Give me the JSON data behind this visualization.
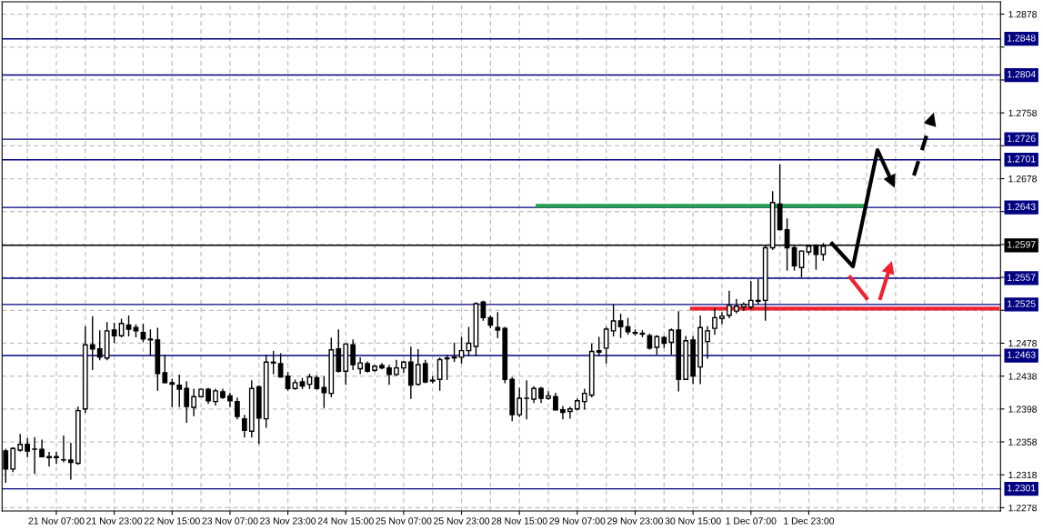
{
  "chart_data": {
    "type": "candlestick",
    "categories": [
      null,
      null,
      null,
      null,
      null,
      null,
      null,
      "21 Nov 07:00",
      null,
      null,
      null,
      null,
      null,
      null,
      null,
      "21 Nov 23:00",
      null,
      null,
      null,
      null,
      null,
      null,
      null,
      "22 Nov 15:00",
      null,
      null,
      null,
      null,
      null,
      null,
      null,
      "23 Nov 07:00",
      null,
      null,
      null,
      null,
      null,
      null,
      null,
      "23 Nov 23:00",
      null,
      null,
      null,
      null,
      null,
      null,
      null,
      "24 Nov 15:00",
      null,
      null,
      null,
      null,
      null,
      null,
      null,
      "25 Nov 07:00",
      null,
      null,
      null,
      null,
      null,
      null,
      null,
      "25 Nov 23:00",
      null,
      null,
      null,
      null,
      null,
      null,
      null,
      "28 Nov 15:00",
      null,
      null,
      null,
      null,
      null,
      null,
      null,
      "29 Nov 07:00",
      null,
      null,
      null,
      null,
      null,
      null,
      null,
      "29 Nov 23:00",
      null,
      null,
      null,
      null,
      null,
      null,
      null,
      "30 Nov 15:00",
      null,
      null,
      null,
      null,
      null,
      null,
      null,
      "1 Dec 07:00",
      null,
      null,
      null,
      null,
      null,
      null,
      null,
      "1 Dec 23:00",
      null,
      null,
      null,
      null,
      null,
      null,
      null,
      null,
      null,
      null,
      null,
      null,
      null,
      null,
      null,
      null,
      null,
      null,
      null,
      null,
      null,
      null,
      null,
      null,
      null,
      null
    ],
    "ylim": [
      1.2274,
      1.2893
    ],
    "yticks": [
      {
        "value": 1.2278,
        "label": "1.2278"
      },
      {
        "value": 1.2318,
        "label": "1.2318"
      },
      {
        "value": 1.2358,
        "label": "1.2358"
      },
      {
        "value": 1.2398,
        "label": "1.2398"
      },
      {
        "value": 1.2438,
        "label": "1.2438"
      },
      {
        "value": 1.2478,
        "label": "1.2478"
      },
      {
        "value": 1.2518,
        "label": null
      },
      {
        "value": 1.2558,
        "label": null
      },
      {
        "value": 1.2598,
        "label": null
      },
      {
        "value": 1.2638,
        "label": null
      },
      {
        "value": 1.2678,
        "label": "1.2678"
      },
      {
        "value": 1.2718,
        "label": null
      },
      {
        "value": 1.2758,
        "label": "1.2758"
      },
      {
        "value": 1.2798,
        "label": null
      },
      {
        "value": 1.2838,
        "label": null
      },
      {
        "value": 1.2878,
        "label": "1.2878"
      }
    ],
    "grid": true,
    "ref_lines": [
      {
        "axis": "y",
        "value": 1.2848,
        "label": "1.2848",
        "color": "#000080"
      },
      {
        "axis": "y",
        "value": 1.2804,
        "label": "1.2804",
        "color": "#000080"
      },
      {
        "axis": "y",
        "value": 1.2726,
        "label": "1.2726",
        "color": "#000080"
      },
      {
        "axis": "y",
        "value": 1.2701,
        "label": "1.2701",
        "color": "#000080"
      },
      {
        "axis": "y",
        "value": 1.2643,
        "label": "1.2643",
        "color": "#000080"
      },
      {
        "axis": "y",
        "value": 1.2597,
        "label": "1.2597",
        "color": "#000000"
      },
      {
        "axis": "y",
        "value": 1.2557,
        "label": "1.2557",
        "color": "#000080"
      },
      {
        "axis": "y",
        "value": 1.2525,
        "label": "1.2525",
        "color": "#000080"
      },
      {
        "axis": "y",
        "value": 1.2463,
        "label": "1.2463",
        "color": "#000080"
      },
      {
        "axis": "y",
        "value": 1.2301,
        "label": "1.2301",
        "color": "#000080"
      },
      {
        "axis": "y",
        "value": 1.2645,
        "color": "#22a04b"
      },
      {
        "axis": "y",
        "value": 1.252,
        "color": "#ee2233"
      }
    ],
    "ohlc": [
      [
        1.2347,
        1.2349,
        1.2309,
        1.2325
      ],
      [
        1.2325,
        1.2351,
        1.2322,
        1.235
      ],
      [
        1.2348,
        1.2367,
        1.2347,
        1.2355
      ],
      [
        1.2355,
        1.2362,
        1.234,
        1.2347
      ],
      [
        1.2349,
        1.2363,
        1.232,
        1.2349
      ],
      [
        1.2349,
        1.236,
        1.234,
        1.234
      ],
      [
        1.234,
        1.2345,
        1.2329,
        1.2339
      ],
      [
        1.2339,
        1.2345,
        1.2332,
        1.234
      ],
      [
        1.2336,
        1.2365,
        1.2334,
        1.2336
      ],
      [
        1.2336,
        1.2356,
        1.2313,
        1.2333
      ],
      [
        1.2332,
        1.24,
        1.2331,
        1.2396
      ],
      [
        1.2398,
        1.2498,
        1.2394,
        1.2476
      ],
      [
        1.2476,
        1.251,
        1.2446,
        1.2471
      ],
      [
        1.2471,
        1.2493,
        1.2458,
        1.2461
      ],
      [
        1.246,
        1.2503,
        1.2458,
        1.2493
      ],
      [
        1.2494,
        1.2502,
        1.2479,
        1.2487
      ],
      [
        1.2487,
        1.2507,
        1.2486,
        1.2502
      ],
      [
        1.25,
        1.2511,
        1.2487,
        1.2495
      ],
      [
        1.2497,
        1.25,
        1.2486,
        1.2493
      ],
      [
        1.2491,
        1.2501,
        1.248,
        1.2483
      ],
      [
        1.2483,
        1.2494,
        1.2464,
        1.2482
      ],
      [
        1.2482,
        1.2496,
        1.2421,
        1.2441
      ],
      [
        1.2442,
        1.2463,
        1.243,
        1.243
      ],
      [
        1.243,
        1.2434,
        1.2401,
        1.2428
      ],
      [
        1.2427,
        1.2439,
        1.2401,
        1.2422
      ],
      [
        1.2423,
        1.2431,
        1.2382,
        1.2401
      ],
      [
        1.24,
        1.2422,
        1.239,
        1.2413
      ],
      [
        1.2413,
        1.2422,
        1.2413,
        1.2422
      ],
      [
        1.2422,
        1.2423,
        1.2405,
        1.2408
      ],
      [
        1.2407,
        1.2422,
        1.2403,
        1.242
      ],
      [
        1.2419,
        1.2422,
        1.2411,
        1.2412
      ],
      [
        1.2414,
        1.2417,
        1.2401,
        1.2408
      ],
      [
        1.2407,
        1.2411,
        1.2386,
        1.2389
      ],
      [
        1.2386,
        1.239,
        1.2364,
        1.2372
      ],
      [
        1.2371,
        1.2432,
        1.2364,
        1.2423
      ],
      [
        1.2425,
        1.2426,
        1.2356,
        1.2387
      ],
      [
        1.2386,
        1.2463,
        1.2376,
        1.2455
      ],
      [
        1.2455,
        1.2468,
        1.2441,
        1.2454
      ],
      [
        1.2453,
        1.2465,
        1.2437,
        1.2437
      ],
      [
        1.2438,
        1.2442,
        1.2421,
        1.2423
      ],
      [
        1.2423,
        1.2433,
        1.2422,
        1.243
      ],
      [
        1.2431,
        1.2435,
        1.2423,
        1.2426
      ],
      [
        1.2428,
        1.244,
        1.2423,
        1.2437
      ],
      [
        1.2436,
        1.2438,
        1.2422,
        1.2423
      ],
      [
        1.2424,
        1.2437,
        1.24,
        1.2418
      ],
      [
        1.2417,
        1.2484,
        1.2413,
        1.247
      ],
      [
        1.2471,
        1.2494,
        1.2443,
        1.2444
      ],
      [
        1.2444,
        1.2477,
        1.2428,
        1.2477
      ],
      [
        1.2476,
        1.2482,
        1.2446,
        1.2452
      ],
      [
        1.2447,
        1.246,
        1.2441,
        1.2454
      ],
      [
        1.2453,
        1.2455,
        1.2443,
        1.2444
      ],
      [
        1.2445,
        1.2451,
        1.2444,
        1.245
      ],
      [
        1.2451,
        1.2453,
        1.2447,
        1.2448
      ],
      [
        1.2448,
        1.2451,
        1.2428,
        1.244
      ],
      [
        1.244,
        1.2457,
        1.2439,
        1.2448
      ],
      [
        1.2448,
        1.2456,
        1.2443,
        1.2455
      ],
      [
        1.2455,
        1.2473,
        1.2411,
        1.2427
      ],
      [
        1.2428,
        1.247,
        1.2427,
        1.2452
      ],
      [
        1.2453,
        1.2457,
        1.243,
        1.2431
      ],
      [
        1.2432,
        1.2437,
        1.243,
        1.2433
      ],
      [
        1.2434,
        1.246,
        1.2421,
        1.2458
      ],
      [
        1.2459,
        1.2463,
        1.2434,
        1.246
      ],
      [
        1.2461,
        1.2478,
        1.2456,
        1.246
      ],
      [
        1.2461,
        1.2485,
        1.2454,
        1.2469
      ],
      [
        1.2469,
        1.2497,
        1.2463,
        1.2478
      ],
      [
        1.2474,
        1.2527,
        1.2463,
        1.2526
      ],
      [
        1.2528,
        1.2529,
        1.2506,
        1.2509
      ],
      [
        1.2509,
        1.2511,
        1.2497,
        1.25
      ],
      [
        1.2497,
        1.2515,
        1.2485,
        1.2494
      ],
      [
        1.2496,
        1.2497,
        1.243,
        1.2434
      ],
      [
        1.2434,
        1.2436,
        1.2384,
        1.2391
      ],
      [
        1.2391,
        1.2423,
        1.2389,
        1.2411
      ],
      [
        1.2411,
        1.2432,
        1.2386,
        1.2411
      ],
      [
        1.241,
        1.2425,
        1.2406,
        1.2423
      ],
      [
        1.2423,
        1.2424,
        1.2406,
        1.2411
      ],
      [
        1.2411,
        1.2419,
        1.241,
        1.2414
      ],
      [
        1.2413,
        1.2417,
        1.2397,
        1.2397
      ],
      [
        1.2397,
        1.2401,
        1.2386,
        1.2394
      ],
      [
        1.2395,
        1.24,
        1.2387,
        1.2398
      ],
      [
        1.2398,
        1.241,
        1.2397,
        1.2408
      ],
      [
        1.2407,
        1.2422,
        1.2398,
        1.2417
      ],
      [
        1.2415,
        1.2477,
        1.2413,
        1.2468
      ],
      [
        1.2469,
        1.2485,
        1.2463,
        1.2467
      ],
      [
        1.2472,
        1.2497,
        1.2454,
        1.2495
      ],
      [
        1.2493,
        1.2525,
        1.2487,
        1.2505
      ],
      [
        1.2505,
        1.2513,
        1.2485,
        1.2498
      ],
      [
        1.2498,
        1.2508,
        1.2489,
        1.2492
      ],
      [
        1.2491,
        1.2494,
        1.2488,
        1.249
      ],
      [
        1.249,
        1.2493,
        1.2486,
        1.2489
      ],
      [
        1.2487,
        1.2489,
        1.2471,
        1.2472
      ],
      [
        1.2473,
        1.2487,
        1.2465,
        1.2486
      ],
      [
        1.2485,
        1.2486,
        1.2473,
        1.2478
      ],
      [
        1.2479,
        1.2495,
        1.2465,
        1.2494
      ],
      [
        1.2494,
        1.2516,
        1.242,
        1.2434
      ],
      [
        1.2434,
        1.2486,
        1.2434,
        1.2481
      ],
      [
        1.2482,
        1.2486,
        1.2429,
        1.2438
      ],
      [
        1.2449,
        1.2511,
        1.2429,
        1.2497
      ],
      [
        1.248,
        1.2498,
        1.246,
        1.2493
      ],
      [
        1.2496,
        1.252,
        1.2489,
        1.2509
      ],
      [
        1.2508,
        1.2515,
        1.2502,
        1.2511
      ],
      [
        1.2512,
        1.2541,
        1.2509,
        1.2524
      ],
      [
        1.2517,
        1.2531,
        1.2515,
        1.2523
      ],
      [
        1.2522,
        1.2527,
        1.2518,
        1.2525
      ],
      [
        1.2522,
        1.2553,
        1.252,
        1.253
      ],
      [
        1.2529,
        1.2555,
        1.2526,
        1.253
      ],
      [
        1.253,
        1.2596,
        1.2506,
        1.2594
      ],
      [
        1.2594,
        1.2662,
        1.2592,
        1.2649
      ],
      [
        1.2647,
        1.2695,
        1.2616,
        1.2616
      ],
      [
        1.2616,
        1.2629,
        1.2567,
        1.2594
      ],
      [
        1.2594,
        1.2596,
        1.2567,
        1.2572
      ],
      [
        1.257,
        1.259,
        1.2559,
        1.259
      ],
      [
        1.2589,
        1.2596,
        1.2586,
        1.2596
      ],
      [
        1.2596,
        1.2597,
        1.2568,
        1.2586
      ],
      [
        1.2586,
        1.2599,
        1.2579,
        1.2596
      ],
      null,
      null,
      null,
      null,
      null,
      null,
      null,
      null,
      null,
      null,
      null,
      null,
      null,
      null,
      null,
      null,
      null,
      null,
      null,
      null,
      null,
      null,
      null,
      null
    ]
  }
}
